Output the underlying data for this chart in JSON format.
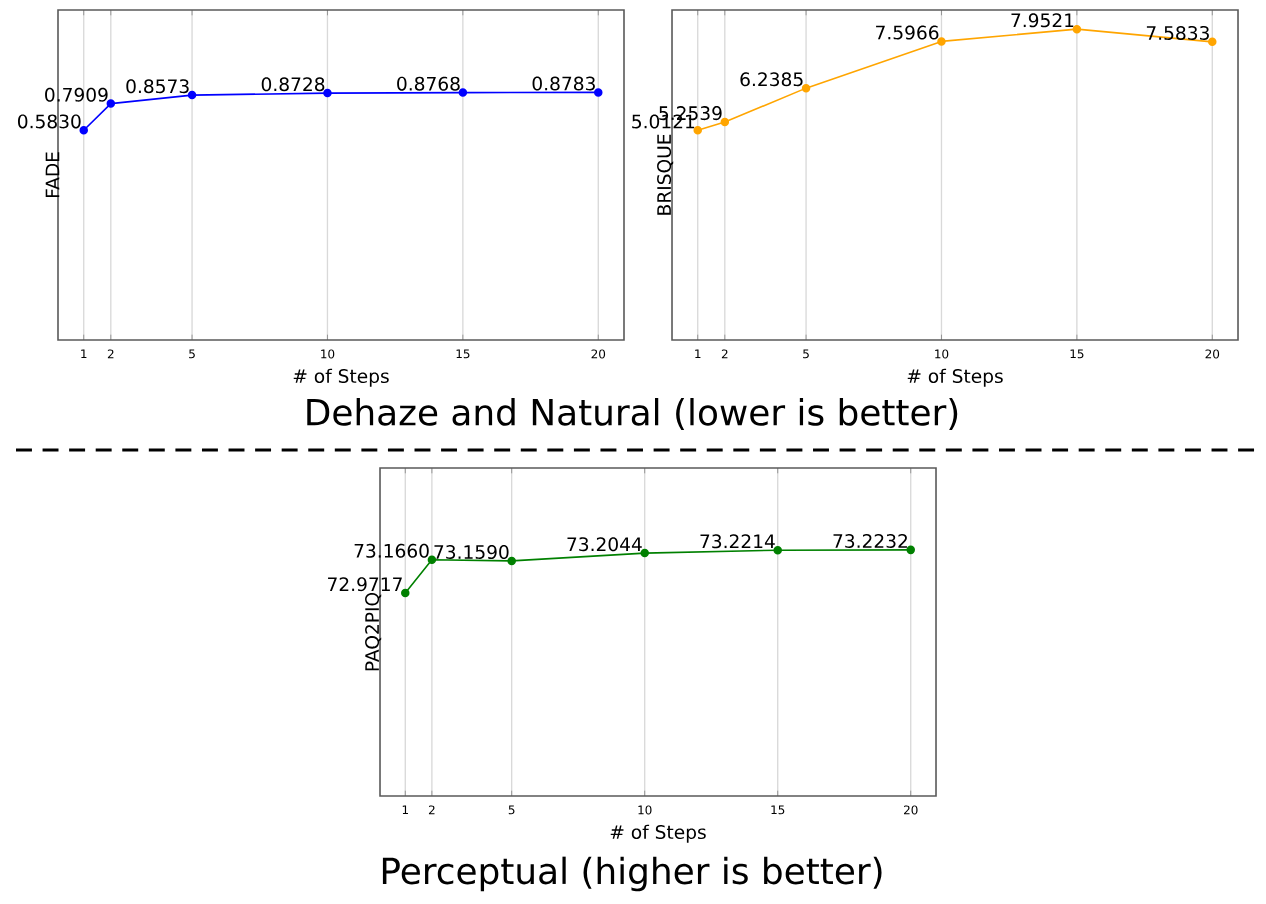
{
  "chart_data": [
    {
      "type": "line",
      "ylabel": "FADE",
      "xlabel": "# of Steps",
      "x": [
        1,
        2,
        5,
        10,
        15,
        20
      ],
      "values": [
        0.583,
        0.7909,
        0.8573,
        0.8728,
        0.8768,
        0.8783
      ],
      "value_labels": [
        "0.5830",
        "0.7909",
        "0.8573",
        "0.8728",
        "0.8768",
        "0.8783"
      ],
      "color": "#0000ff",
      "marker": "circle",
      "xlim": [
        0.05,
        20.95
      ],
      "ylim": [
        -1.05,
        1.52
      ],
      "xticks": [
        1,
        2,
        5,
        10,
        15,
        20
      ],
      "grid": "x",
      "tick_labels": "x",
      "annotations": [
        "Dehaze and Natural (lower is better)"
      ]
    },
    {
      "type": "line",
      "ylabel": "BRISQUE",
      "xlabel": "# of Steps",
      "x": [
        1,
        2,
        5,
        10,
        15,
        20
      ],
      "values": [
        5.0121,
        5.2539,
        6.2385,
        7.5966,
        7.9521,
        7.5833
      ],
      "value_labels": [
        "5.0121",
        "5.2539",
        "6.2385",
        "7.5966",
        "7.9521",
        "7.5833"
      ],
      "color": "#ffa500",
      "marker": "circle",
      "xlim": [
        0.05,
        20.95
      ],
      "ylim": [
        -1.08,
        8.51
      ],
      "xticks": [
        1,
        2,
        5,
        10,
        15,
        20
      ],
      "grid": "x",
      "tick_labels": "x"
    },
    {
      "type": "line",
      "ylabel": "PAQ2PIQ",
      "xlabel": "# of Steps",
      "x": [
        1,
        2,
        5,
        10,
        15,
        20
      ],
      "values": [
        72.9717,
        73.166,
        73.159,
        73.2044,
        73.2214,
        73.2232
      ],
      "value_labels": [
        "72.9717",
        "73.1660",
        "73.1590",
        "73.2044",
        "73.2214",
        "73.2232"
      ],
      "color": "#008000",
      "marker": "circle",
      "xlim": [
        0.05,
        20.95
      ],
      "ylim": [
        71.79,
        73.7
      ],
      "xticks": [
        1,
        2,
        5,
        10,
        15,
        20
      ],
      "grid": "x",
      "tick_labels": "x",
      "annotations": [
        "Perceptual (higher is better)"
      ]
    }
  ]
}
